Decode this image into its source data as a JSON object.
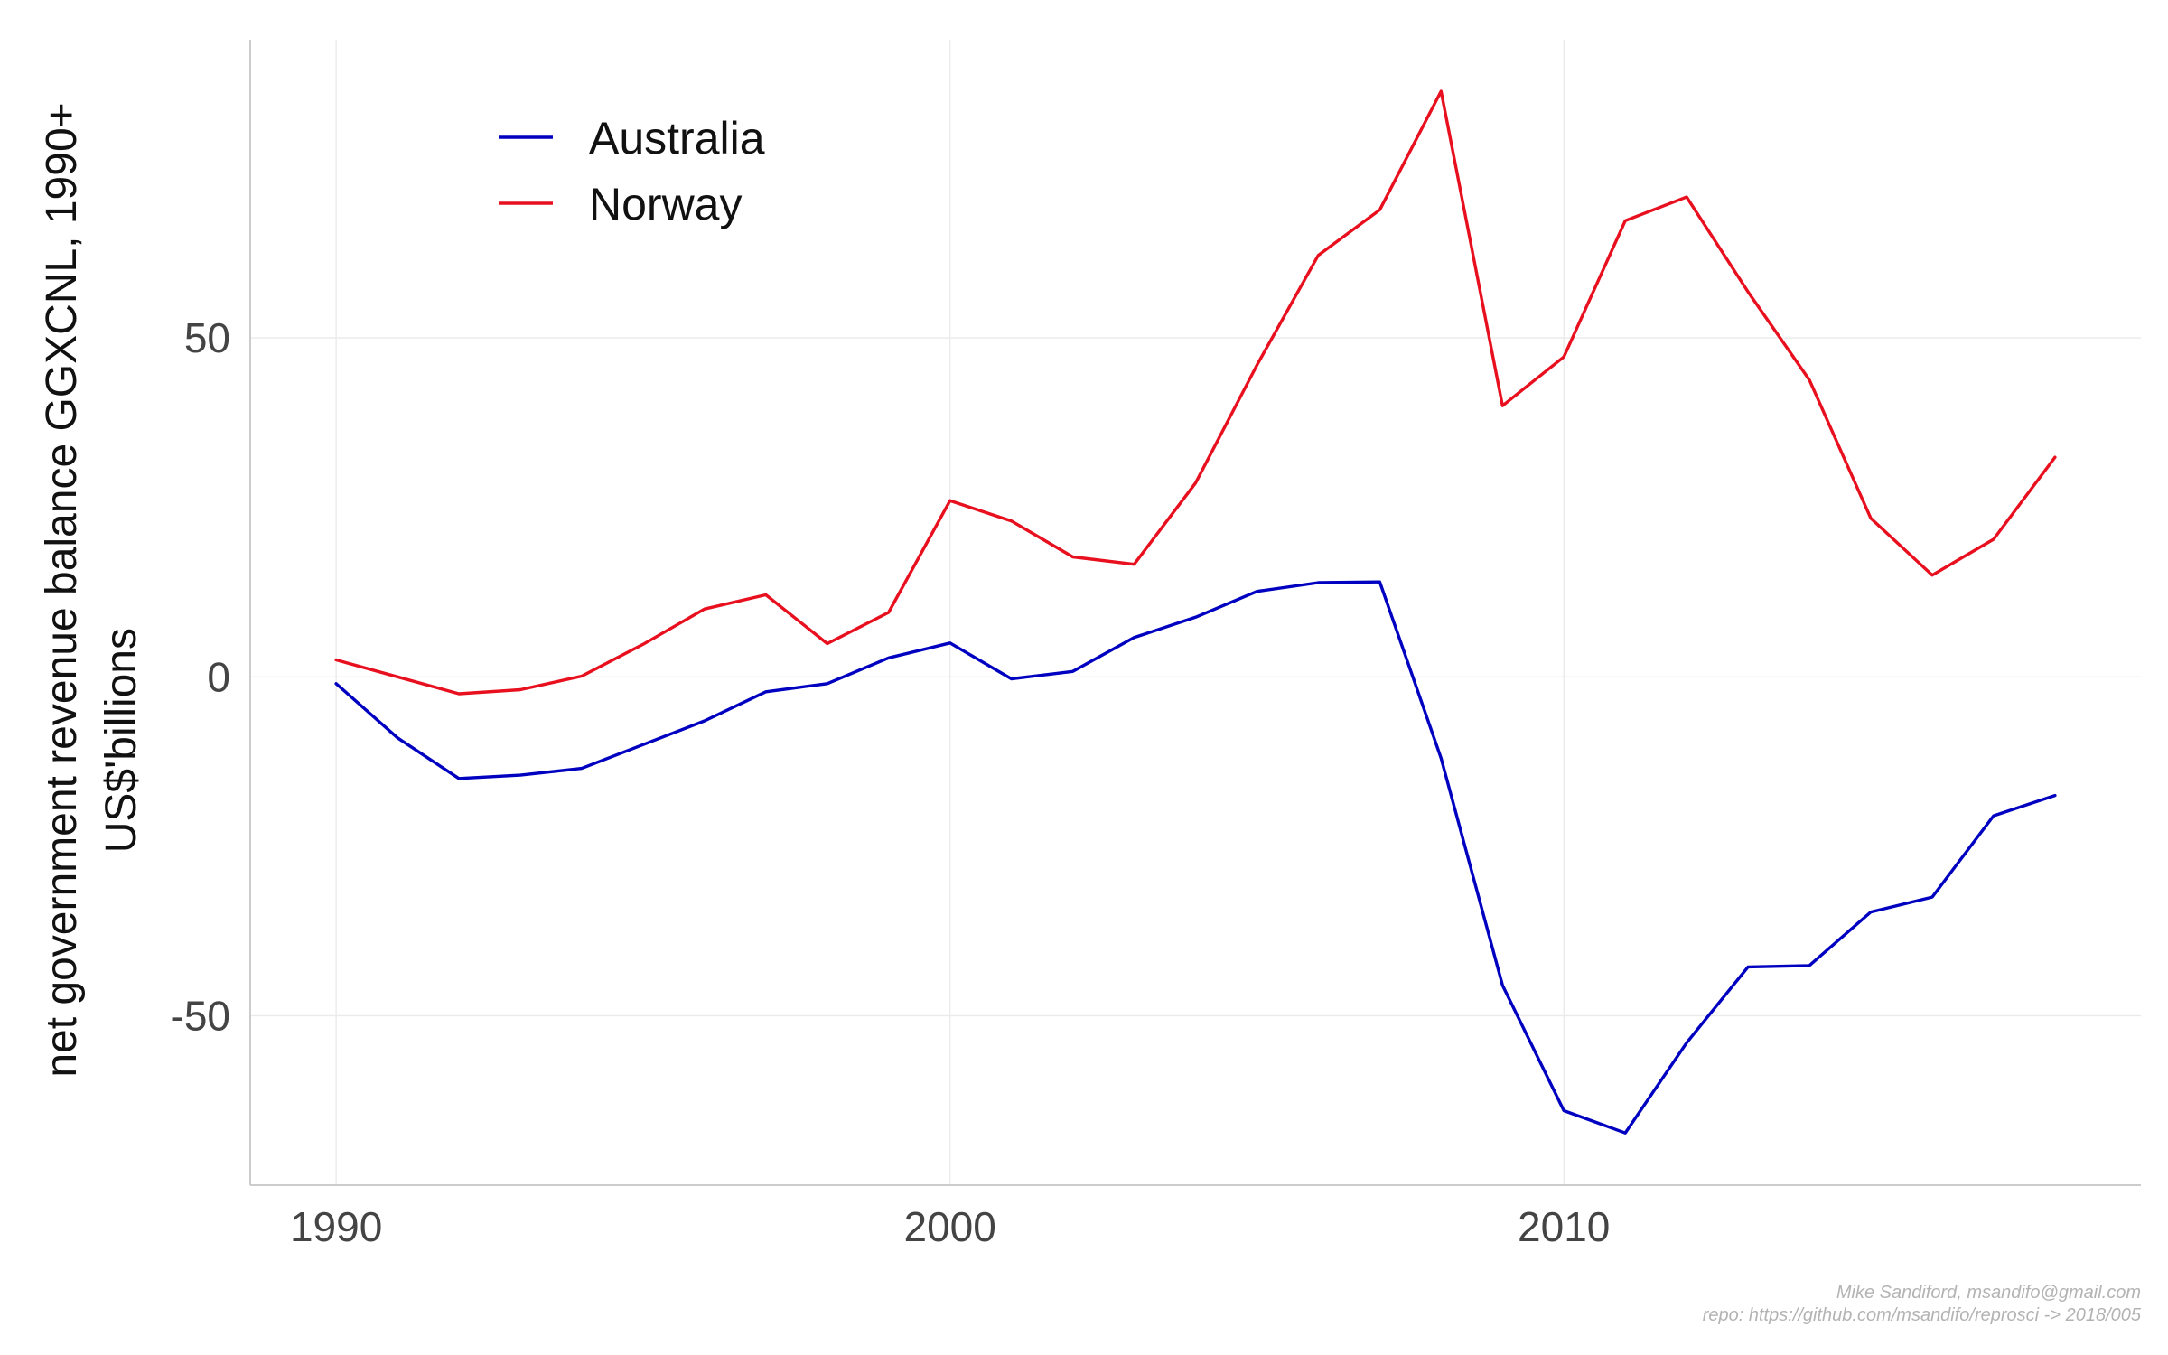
{
  "chart_data": {
    "type": "line",
    "title": "",
    "xlabel": "",
    "ylabel_lines": [
      "net government revenue balance GGXCNL, 1990+",
      "US$'billions"
    ],
    "xlim": [
      1988.6,
      2019.4
    ],
    "ylim": [
      -75,
      94
    ],
    "x_ticks": [
      1990,
      2000,
      2010
    ],
    "y_ticks": [
      -50,
      0,
      50
    ],
    "y_tick_labels": [
      "-50",
      "0",
      "50"
    ],
    "grid": true,
    "legend_position": "top-left",
    "x": [
      1990,
      1991,
      1992,
      1993,
      1994,
      1995,
      1996,
      1997,
      1998,
      1999,
      2000,
      2001,
      2002,
      2003,
      2004,
      2005,
      2006,
      2007,
      2008,
      2009,
      2010,
      2011,
      2012,
      2013,
      2014,
      2015,
      2016,
      2017,
      2018
    ],
    "series": [
      {
        "name": "Australia",
        "color": "#0000c0",
        "values": [
          -1,
          -9,
          -15,
          -14.5,
          -13.5,
          -10,
          -6.5,
          -2.2,
          -1,
          2.8,
          5,
          -0.3,
          0.8,
          5.8,
          8.8,
          12.6,
          13.9,
          14,
          -12,
          -45.5,
          -64,
          -67.3,
          -54,
          -42.8,
          -42.6,
          -34.7,
          -32.5,
          -20.5,
          -17.5
        ]
      },
      {
        "name": "Norway",
        "color": "#e8101e",
        "values": [
          2.5,
          0,
          -2.5,
          -1.9,
          0.1,
          4.8,
          10,
          12.1,
          4.9,
          9.5,
          26,
          23,
          17.7,
          16.6,
          28.6,
          46,
          62.2,
          68.9,
          86.4,
          40,
          47.2,
          67.3,
          70.8,
          56.8,
          43.8,
          23.4,
          15,
          20.3,
          32.4
        ]
      }
    ]
  },
  "caption": {
    "line1": "Mike Sandiford, msandifo@gmail.com",
    "line2": "repo: https://github.com/msandifo/reprosci -> 2018/005"
  }
}
